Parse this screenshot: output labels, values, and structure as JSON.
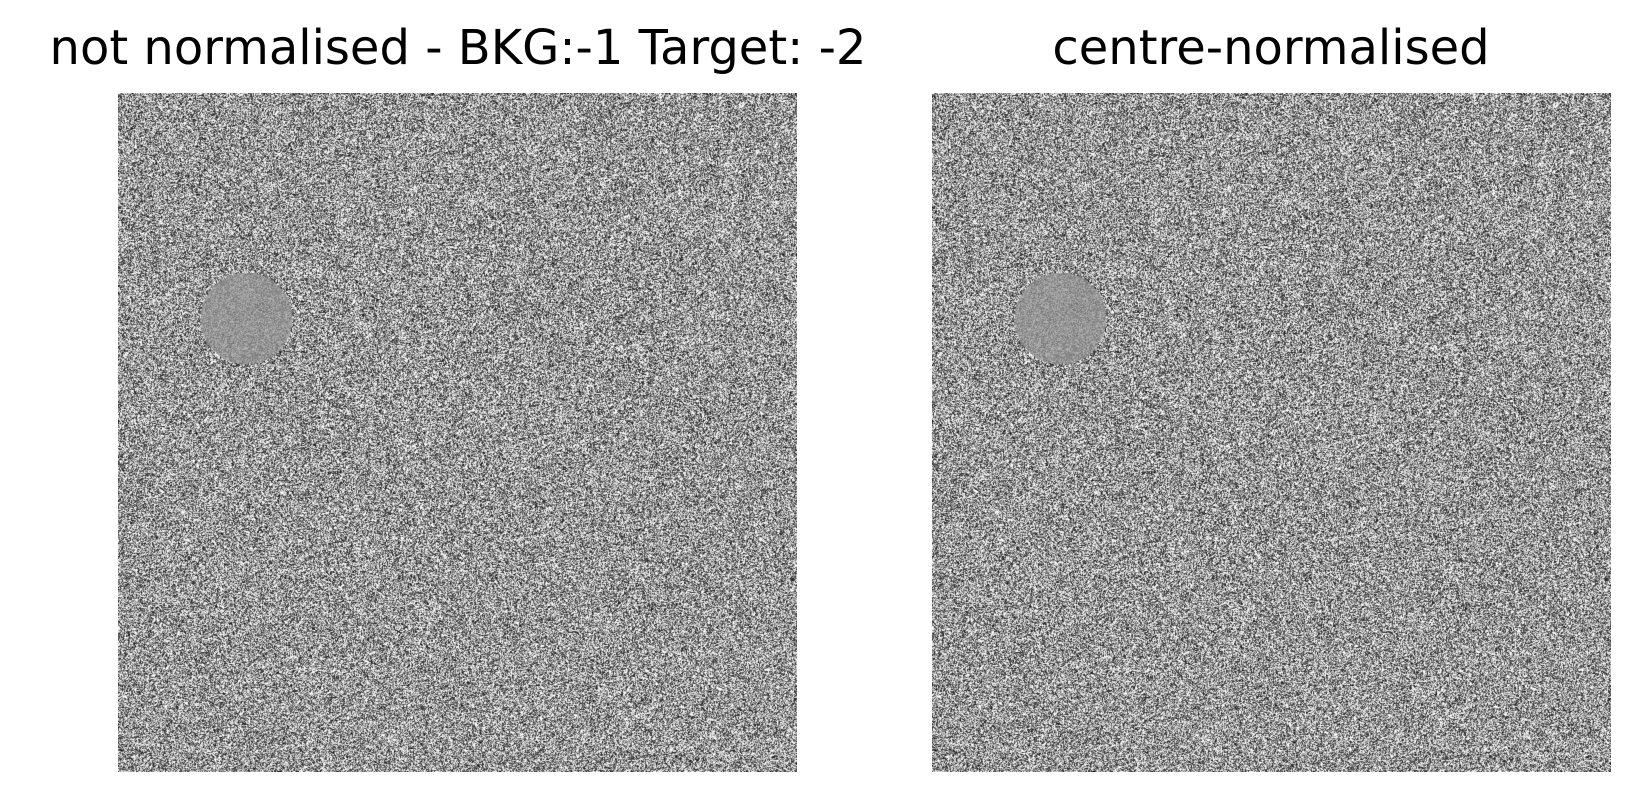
{
  "panels": [
    {
      "title": "not normalised - BKG:-1 Target: -2",
      "image": "grayscale-noise-with-target-disc"
    },
    {
      "title": "centre-normalised",
      "image": "grayscale-noise-with-target-disc"
    }
  ],
  "colors": {
    "background": "#ffffff",
    "title_text": "#000000",
    "image_colormap": "grayscale"
  }
}
